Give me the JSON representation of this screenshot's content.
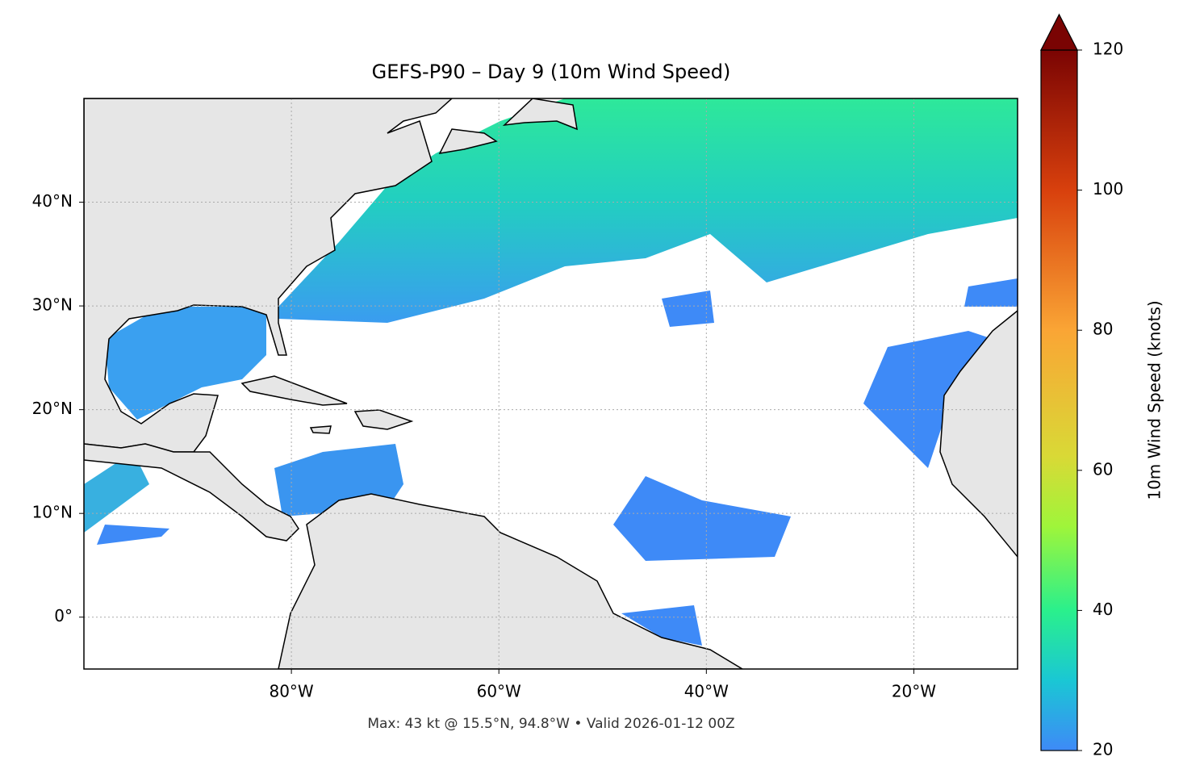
{
  "map": {
    "title": "GEFS-P90 – Day 9 (10m Wind Speed)",
    "extent": {
      "lon": [
        -100,
        -10
      ],
      "lat": [
        -5,
        50
      ]
    },
    "lat_ticks": [
      {
        "value": 0,
        "label": "0°"
      },
      {
        "value": 10,
        "label": "10°N"
      },
      {
        "value": 20,
        "label": "20°N"
      },
      {
        "value": 30,
        "label": "30°N"
      },
      {
        "value": 40,
        "label": "40°N"
      }
    ],
    "lon_ticks": [
      {
        "value": -80,
        "label": "80°W"
      },
      {
        "value": -60,
        "label": "60°W"
      },
      {
        "value": -40,
        "label": "40°W"
      },
      {
        "value": -20,
        "label": "20°W"
      }
    ],
    "colorbar": {
      "label": "10m Wind Speed (knots)",
      "range": [
        20,
        120
      ],
      "ticks": [
        20,
        40,
        60,
        80,
        100,
        120
      ]
    },
    "footer": "Max: 43 kt @ 15.5°N, 94.8°W • Valid 2026-01-12 00Z"
  }
}
